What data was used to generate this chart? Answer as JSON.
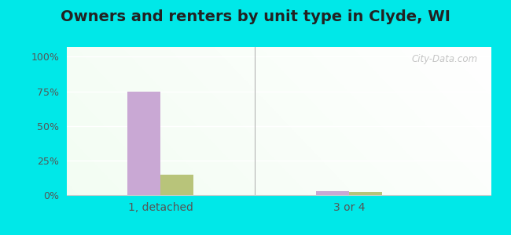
{
  "title": "Owners and renters by unit type in Clyde, WI",
  "categories": [
    "1, detached",
    "3 or 4"
  ],
  "owner_values": [
    75,
    3
  ],
  "renter_values": [
    15,
    2
  ],
  "owner_color": "#c9a8d4",
  "renter_color": "#b8c47a",
  "yticks": [
    0,
    25,
    50,
    75,
    100
  ],
  "ytick_labels": [
    "0%",
    "25%",
    "50%",
    "75%",
    "100%"
  ],
  "figure_bg": "#00e8e8",
  "title_fontsize": 14,
  "bar_width": 0.35,
  "group_positions": [
    1.0,
    3.0
  ],
  "xlim": [
    0.0,
    4.5
  ],
  "ylim": [
    0,
    107
  ]
}
